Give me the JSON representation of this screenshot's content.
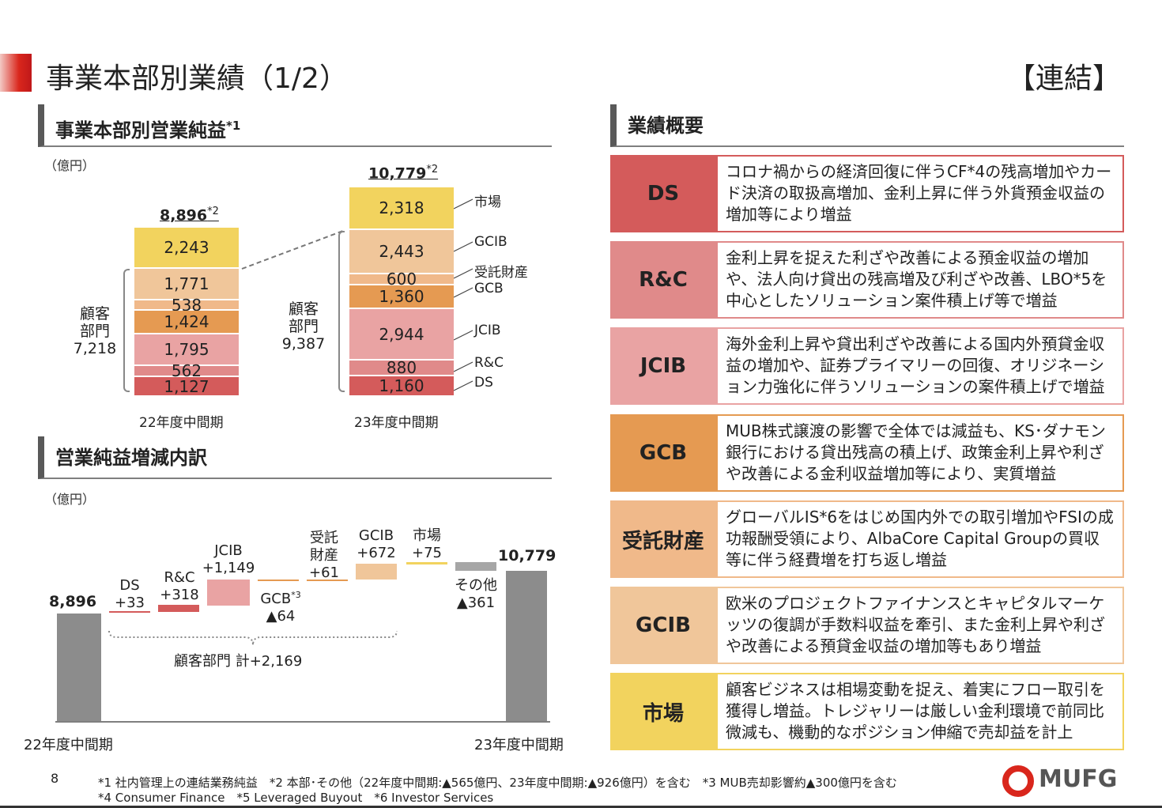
{
  "header": {
    "title": "事業本部別業績（1/2）",
    "tag": "【連結】"
  },
  "left_top": {
    "heading": "事業本部別営業純益",
    "heading_note": "*1",
    "unit": "（億円）",
    "fy22": {
      "total": "8,896",
      "total_note": "*2",
      "segments": [
        "2,243",
        "1,771",
        "538",
        "1,424",
        "1,795",
        "562",
        "1,127"
      ],
      "customer_label_1": "顧客",
      "customer_label_2": "部門",
      "customer_value": "7,218",
      "period": "22年度中間期"
    },
    "fy23": {
      "total": "10,779",
      "total_note": "*2",
      "segments": [
        "2,318",
        "2,443",
        "600",
        "1,360",
        "2,944",
        "880",
        "1,160"
      ],
      "customer_label_1": "顧客",
      "customer_label_2": "部門",
      "customer_value": "9,387",
      "period": "23年度中間期"
    },
    "legend": [
      "市場",
      "GCIB",
      "受託財産",
      "GCB",
      "JCIB",
      "R&C",
      "DS"
    ]
  },
  "left_bottom": {
    "heading": "営業純益増減内訳",
    "unit": "（億円）",
    "start_value": "8,896",
    "end_value": "10,779",
    "steps": [
      {
        "name": "DS",
        "value": "+33"
      },
      {
        "name": "R&C",
        "value": "+318"
      },
      {
        "name": "JCIB",
        "value": "+1,149"
      },
      {
        "name": "GCB",
        "note": "*3",
        "value": "▲64"
      },
      {
        "name1": "受託",
        "name2": "財産",
        "value": "+61"
      },
      {
        "name": "GCIB",
        "value": "+672"
      },
      {
        "name": "市場",
        "value": "+75"
      },
      {
        "name": "その他",
        "value": "▲361"
      }
    ],
    "customer_total": "顧客部門 計+2,169",
    "start_period": "22年度中間期",
    "end_period": "23年度中間期"
  },
  "summary": {
    "heading": "業績概要",
    "rows": [
      {
        "key": "DS",
        "text": "コロナ禍からの経済回復に伴うCF*4の残高増加やカード決済の取扱高増加、金利上昇に伴う外貨預金収益の増加等により増益"
      },
      {
        "key": "R&C",
        "text": "金利上昇を捉えた利ざや改善による預金収益の増加や、法人向け貸出の残高増及び利ざや改善、LBO*5を中心としたソリューション案件積上げ等で増益"
      },
      {
        "key": "JCIB",
        "text": "海外金利上昇や貸出利ざや改善による国内外預貸金収益の増加や、証券プライマリーの回復、オリジネーション力強化に伴うソリューションの案件積上げで増益"
      },
      {
        "key": "GCB",
        "text": "MUB株式譲渡の影響で全体では減益も、KS･ダナモン銀行における貸出残高の積上げ、政策金利上昇や利ざや改善による金利収益増加等により、実質増益"
      },
      {
        "key": "受託財産",
        "text": "グローバルIS*6をはじめ国内外での取引増加やFSIの成功報酬受領により、AlbaCore Capital Groupの買収等に伴う経費増を打ち返し増益"
      },
      {
        "key": "GCIB",
        "text": "欧米のプロジェクトファイナンスとキャピタルマーケッツの復調が手数料収益を牽引、また金利上昇や利ざや改善による預貸金収益の増加等もあり増益"
      },
      {
        "key": "市場",
        "text": "顧客ビジネスは相場変動を捉え、着実にフロー取引を獲得し増益。トレジャリーは厳しい金利環境で前同比微減も、機動的なポジション伸縮で売却益を計上"
      }
    ]
  },
  "colors": {
    "ds": "#d45b5b",
    "rc": "#e08a8a",
    "jcib": "#e9a3a3",
    "gcb": "#e59a52",
    "trust": "#f0b98a",
    "gcib": "#f0c69a",
    "market": "#f2d35e",
    "gray": "#8c8c8c"
  },
  "footer": {
    "page": "8",
    "note1": "*1  社内管理上の連結業務純益　*2  本部･その他（22年度中間期:▲565億円、23年度中間期:▲926億円）を含む　*3  MUB売却影響約▲300億円を含む",
    "note2": "*4  Consumer Finance　*5  Leveraged Buyout　*6  Investor Services",
    "logo": "MUFG"
  }
}
